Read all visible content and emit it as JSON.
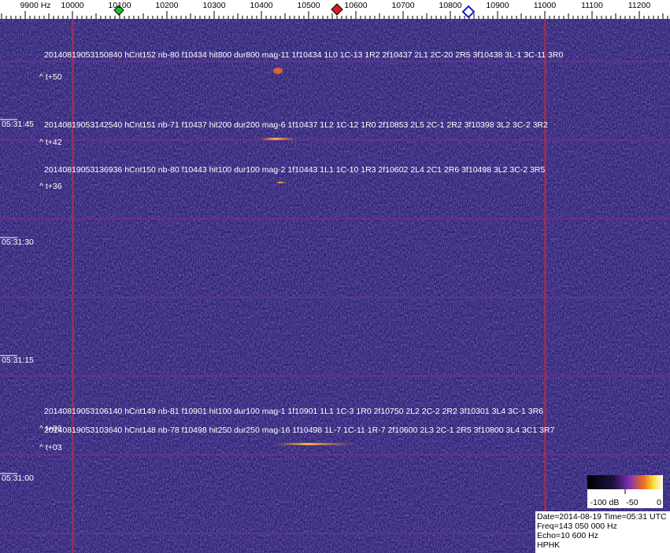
{
  "frequency_axis": {
    "labels": [
      "9900 Hz",
      "10000",
      "10100",
      "10200",
      "10300",
      "10400",
      "10500",
      "10600",
      "10700",
      "10800",
      "10900",
      "11000",
      "11100",
      "11200"
    ]
  },
  "time_axis": {
    "labels": [
      "05:31:45",
      "05:31:30",
      "05:31:15",
      "05:31:00"
    ]
  },
  "detections": [
    {
      "text": "20140819053150840 hCnt152 nb-80 f10434 hit800 dur800 mag-11 1f10434 1L0 1C-13 1R2 2f10437 2L1 2C-20 2R5 3f10438 3L-1 3C-11 3R0",
      "tag": "^ t+50"
    },
    {
      "text": "20140819053142540 hCnt151 nb-71 f10437 hit200 dur200 mag-6 1f10437 1L2 1C-12 1R0 2f10853 2L5 2C-1 2R2 3f10398 3L2 3C-2 3R2",
      "tag": "^ t+42"
    },
    {
      "text": "20140819053136936 hCnt150 nb-80 f10443 hit100 dur100 mag-2 1f10443 1L1 1C-10 1R3 2f10602 2L4 2C1 2R6 3f10498 3L2 3C-2 3R5",
      "tag": "^ t+36"
    },
    {
      "text": "20140819053106140 hCnt149 nb-81 f10901 hit100 dur100 mag-1 1f10901 1L1 1C-3 1R0 2f10750 2L2 2C-2 2R2 3f10301 3L4 3C-1 3R6",
      "tag": "^ t+06"
    },
    {
      "text": "20140819053103640 hCnt148 nb-78 f10498 hit250 dur250 mag-16 1f10498 1L-7 1C-11 1R-7 2f10600 2L3 2C-1 2R5 3f10800 3L4 3C1 3R7",
      "tag": "^ t+03"
    }
  ],
  "color_scale": {
    "labels": [
      "-100 dB",
      "-50",
      "0"
    ]
  },
  "info": {
    "lines": [
      "Date=2014-08-19 Time=05:31 UTC",
      "Freq=143 050 000 Hz",
      "Echo=10 600 Hz",
      "HPHK"
    ]
  }
}
